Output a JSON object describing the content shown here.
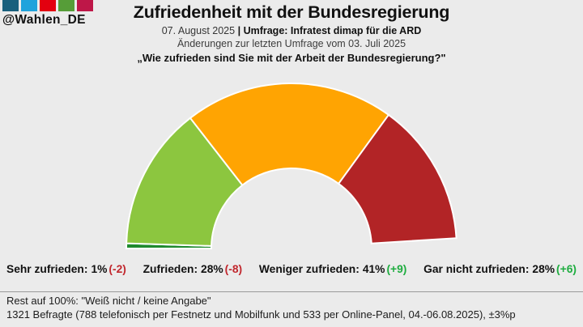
{
  "brand": {
    "handle": "@Wahlen_DE",
    "squares": [
      "#19607D",
      "#1FA3DC",
      "#E3000F",
      "#569D38",
      "#BE1748"
    ]
  },
  "header": {
    "title": "Zufriedenheit mit der Bundesregierung",
    "date": "07. August 2025",
    "separator": "|",
    "source_bold": "Umfrage: Infratest dimap für die ARD",
    "change_note": "Änderungen zur letzten Umfrage vom 03. Juli 2025",
    "question": "„Wie zufrieden sind Sie mit der Arbeit der Bundesregierung?\""
  },
  "chart_data": {
    "type": "pie",
    "subtype": "half-donut-gauge",
    "title": "Zufriedenheit mit der Bundesregierung",
    "categories": [
      "Sehr zufrieden",
      "Zufrieden",
      "Weniger zufrieden",
      "Gar nicht zufrieden"
    ],
    "values": [
      1,
      28,
      41,
      28
    ],
    "changes": [
      -2,
      -8,
      9,
      6
    ],
    "colors": [
      "#1E8A2E",
      "#8CC63F",
      "#FFA402",
      "#B22426"
    ],
    "unit": "%",
    "span_degrees": 180,
    "start_side": "left",
    "rest_to_100": "Weiß nicht / keine Angabe"
  },
  "footer": {
    "rest_note": "Rest auf 100%: \"Weiß nicht / keine Angabe\"",
    "sample_note": "1321 Befragte (788 telefonisch per Festnetz und Mobilfunk und 533 per Online-Panel, 04.-06.08.2025), ±3%p"
  },
  "colors": {
    "background": "#EBEBEB",
    "positive": "#1FAD40",
    "negative": "#C1272D",
    "divider": "#9A9A9A",
    "separator_stroke": "#FFFFFF"
  }
}
